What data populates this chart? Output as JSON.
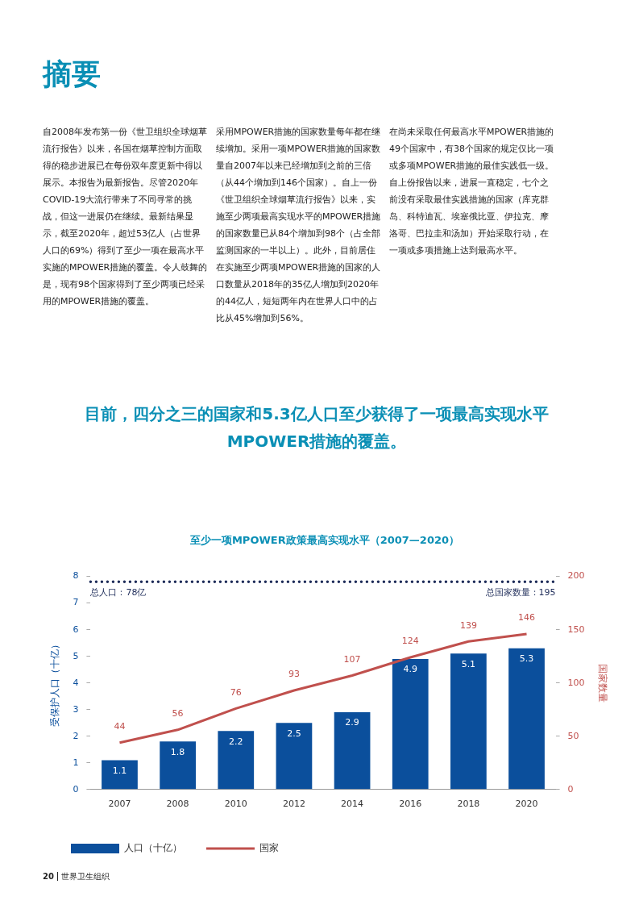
{
  "chart_data": {
    "type": "bar",
    "title": "至少一项MPOWER政策最高实现水平（2007—2020）",
    "annotations": [
      "摘要",
      "自2008年发布第一份《世卫组织全球烟草流行报告》以来，各国在烟草控制方面取得的稳步进展已在每份双年度更新中得以展示。本报告为最新报告。尽管2020年COVID-19大流行带来了不同寻常的挑战，但这一进展仍在继续。最新结果显示，截至2020年，超过53亿人（占世界人口的69%）得到了至少一项在最高水平实施的MPOWER措施的覆盖。令人鼓舞的是，现有98个国家得到了至少两项已经采用的MPOWER措施的覆盖。",
      "采用MPOWER措施的国家数量每年都在继续增加。采用一项MPOWER措施的国家数量自2007年以来已经增加到之前的三倍（从44个增加到146个国家）。自上一份《世卫组织全球烟草流行报告》以来，实施至少两项最高实现水平的MPOWER措施的国家数量已从84个增加到98个（占全部监测国家的一半以上）。此外，目前居住在实施至少两项MPOWER措施的国家的人口数量从2018年的35亿人增加到2020年的44亿人，短短两年内在世界人口中的占比从45%增加到56%。",
      "在尚未采取任何最高水平MPOWER措施的49个国家中，有38个国家的规定仅比一项或多项MPOWER措施的最佳实践低一级。自上份报告以来，进展一直稳定，七个之前没有采取最佳实践措施的国家（库克群岛、科特迪瓦、埃塞俄比亚、伊拉克、摩洛哥、巴拉圭和汤加）开始采取行动，在一项或多项措施上达到最高水平。",
      "目前，四分之三的国家和5.3亿人口至少获得了一项最高实现水平MPOWER措施的覆盖。",
      "20",
      "世界卫生组织",
      "总国家数量：195"
    ],
    "ylabel": "受保护人口（十亿）",
    "y2label": "国家数量",
    "categories": [
      "2007",
      "2008",
      "2010",
      "2012",
      "2014",
      "2016",
      "2018",
      "2020"
    ],
    "series": [
      {
        "name": "人口（十亿）",
        "color": "#0b4f9c",
        "values": [
          1.1,
          1.8,
          2.2,
          2.5,
          2.9,
          4.9,
          5.1,
          5.3
        ]
      },
      {
        "name": "国家",
        "type": "line",
        "axis": "y2",
        "color": "#c0504d",
        "values": [
          44,
          56,
          76,
          93,
          107,
          124,
          139,
          146
        ]
      }
    ],
    "ylim": [
      0,
      8
    ],
    "yticks": [
      0,
      1,
      2,
      3,
      4,
      5,
      6,
      7,
      8
    ],
    "y2lim": [
      0,
      200
    ],
    "y2ticks": [
      0,
      50,
      100,
      150,
      200
    ],
    "ref_lines": [
      {
        "axis": "y",
        "value": 7.8,
        "label": "总人口：78亿",
        "color": "#1f2d5a",
        "line_style": "dotted"
      }
    ],
    "data_labels": true,
    "grid": false,
    "legend": "bottom"
  }
}
